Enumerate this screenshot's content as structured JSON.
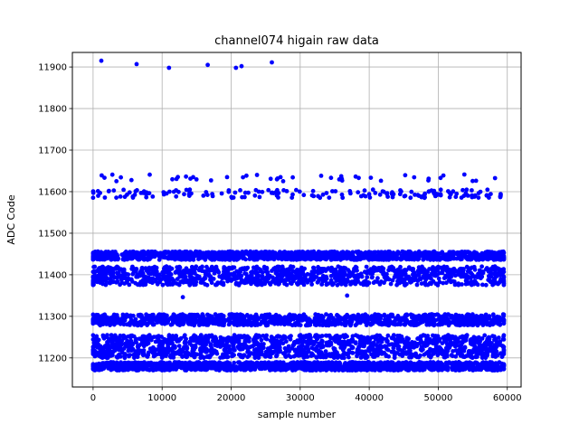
{
  "chart_data": {
    "type": "scatter",
    "title": "channel074 higain raw data",
    "xlabel": "sample number",
    "ylabel": "ADC Code",
    "xlim": [
      -3000,
      62000
    ],
    "ylim": [
      11130,
      11935
    ],
    "xticks": [
      0,
      10000,
      20000,
      30000,
      40000,
      50000,
      60000
    ],
    "xtick_labels": [
      "0",
      "10000",
      "20000",
      "30000",
      "40000",
      "50000",
      "60000"
    ],
    "yticks": [
      11200,
      11300,
      11400,
      11500,
      11600,
      11700,
      11800,
      11900
    ],
    "ytick_labels": [
      "11200",
      "11300",
      "11400",
      "11500",
      "11600",
      "11700",
      "11800",
      "11900"
    ],
    "grid": true,
    "marker_color": "#0000ff",
    "x_range": [
      0,
      59500
    ],
    "bands": [
      {
        "ymin": 11170,
        "ymax": 11190,
        "density": "solid"
      },
      {
        "ymin": 11200,
        "ymax": 11255,
        "density": "solid"
      },
      {
        "ymin": 11278,
        "ymax": 11305,
        "density": "dense"
      },
      {
        "ymin": 11375,
        "ymax": 11420,
        "density": "dense"
      },
      {
        "ymin": 11436,
        "ymax": 11456,
        "density": "solid"
      },
      {
        "ymin": 11585,
        "ymax": 11605,
        "density": "sparse"
      },
      {
        "ymin": 11625,
        "ymax": 11642,
        "density": "very sparse"
      }
    ],
    "outliers": [
      {
        "x": 1200,
        "y": 11915
      },
      {
        "x": 6300,
        "y": 11907
      },
      {
        "x": 11000,
        "y": 11898
      },
      {
        "x": 16600,
        "y": 11905
      },
      {
        "x": 20700,
        "y": 11898
      },
      {
        "x": 21500,
        "y": 11902
      },
      {
        "x": 25900,
        "y": 11911
      },
      {
        "x": 13000,
        "y": 11346
      },
      {
        "x": 36800,
        "y": 11350
      }
    ]
  }
}
